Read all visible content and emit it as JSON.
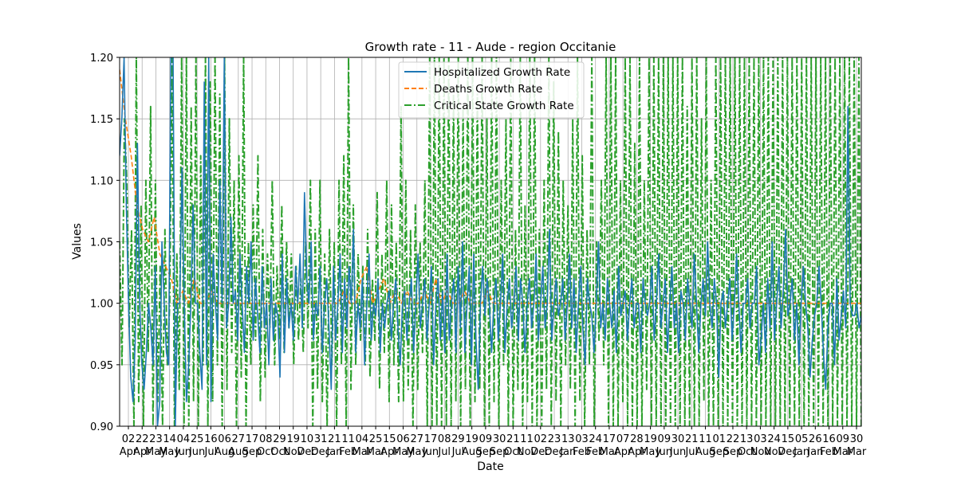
{
  "chart_data": {
    "type": "line",
    "title": "Growth rate - 11 - Aude - region Occitanie",
    "xlabel": "Date",
    "ylabel": "Values",
    "ylim": [
      0.9,
      1.2
    ],
    "yticks": [
      "0.90",
      "0.95",
      "1.00",
      "1.05",
      "1.10",
      "1.15",
      "1.20"
    ],
    "grid": true,
    "legend_position": "upper center",
    "xtick_days": [
      "02",
      "22",
      "23",
      "14",
      "04",
      "25",
      "16",
      "06",
      "27",
      "17",
      "08",
      "29",
      "19",
      "10",
      "31",
      "21",
      "11",
      "04",
      "25",
      "15",
      "06",
      "27",
      "17",
      "08",
      "29",
      "19",
      "09",
      "30",
      "21",
      "11",
      "02",
      "23",
      "13",
      "03",
      "24",
      "17",
      "07",
      "28",
      "19",
      "09",
      "30",
      "21",
      "11",
      "01",
      "22",
      "13",
      "03",
      "24",
      "15",
      "05",
      "26",
      "16",
      "09",
      "30"
    ],
    "xtick_months": [
      "Apr",
      "Apr",
      "May",
      "May",
      "Jun",
      "Jun",
      "Jul",
      "Aug",
      "Aug",
      "Sep",
      "Oct",
      "Oct",
      "Nov",
      "Dec",
      "Dec",
      "Jan",
      "Feb",
      "Mar",
      "Mar",
      "Apr",
      "May",
      "May",
      "Jun",
      "Jul",
      "Jul",
      "Aug",
      "Sep",
      "Sep",
      "Oct",
      "Nov",
      "Dec",
      "Dec",
      "Jan",
      "Feb",
      "Feb",
      "Mar",
      "Apr",
      "Apr",
      "May",
      "Jun",
      "Jun",
      "Jul",
      "Aug",
      "Sep",
      "Sep",
      "Oct",
      "Nov",
      "Nov",
      "Dec",
      "Jan",
      "Jan",
      "Feb",
      "Mar",
      "Mar"
    ],
    "series": [
      {
        "name": "Hospitalized Growth Rate",
        "color": "#1f77b4",
        "style": "solid",
        "x_range": [
          0,
          1
        ],
        "values": [
          1.12,
          1.15,
          1.2,
          1.08,
          1.0,
          0.94,
          0.92,
          0.97,
          1.13,
          1.0,
          0.95,
          0.93,
          0.96,
          1.0,
          0.98,
          0.95,
          1.03,
          0.9,
          0.92,
          1.05,
          1.0,
          0.96,
          0.95,
          1.2,
          1.2,
          0.9,
          1.0,
          1.0,
          1.11,
          1.0,
          0.92,
          0.95,
          1.0,
          1.08,
          1.0,
          1.0,
          0.96,
          0.93,
          1.18,
          0.95,
          1.2,
          0.92,
          1.04,
          1.0,
          0.97,
          1.1,
          1.0,
          1.2,
          0.98,
          1.0,
          1.07,
          1.0,
          1.01,
          0.97,
          1.04,
          1.0,
          0.96,
          1.03,
          1.0,
          1.05,
          0.97,
          1.02,
          0.99,
          0.96,
          1.03,
          0.98,
          1.0,
          0.95,
          1.02,
          0.97,
          1.0,
          0.99,
          0.94,
          1.04,
          0.96,
          1.02,
          0.98,
          1.0,
          0.97,
          1.03,
          1.0,
          1.04,
          0.98,
          1.09,
          1.02,
          1.0,
          1.05,
          0.97,
          1.0,
          0.99,
          1.03,
          0.96,
          1.0,
          1.02,
          0.98,
          0.93,
          1.03,
          0.97,
          1.0,
          1.04,
          0.96,
          1.02,
          0.98,
          1.03,
          1.0,
          1.06,
          0.96,
          1.0,
          0.98,
          1.02,
          0.95,
          1.0,
          1.04,
          0.97,
          1.0,
          0.99,
          1.02,
          0.96,
          1.0,
          0.98,
          1.0,
          1.01,
          0.97,
          1.0,
          1.02,
          0.98,
          0.95,
          1.0,
          1.01,
          0.97,
          1.0,
          1.02,
          0.96,
          1.0,
          1.04,
          0.98,
          1.0,
          1.02,
          0.97,
          1.0,
          1.03,
          0.95,
          1.0,
          1.02,
          0.97,
          1.01,
          0.96,
          1.04,
          0.97,
          1.0,
          1.02,
          0.96,
          1.03,
          0.98,
          1.05,
          0.96,
          1.0,
          1.03,
          0.95,
          1.04,
          0.97,
          0.93,
          1.0,
          1.03,
          0.99,
          1.02,
          1.0,
          0.96,
          1.0,
          1.02,
          0.97,
          1.0,
          1.04,
          0.96,
          1.0,
          1.02,
          0.98,
          1.0,
          1.03,
          0.97,
          1.02,
          1.0,
          0.96,
          1.0,
          1.02,
          0.98,
          1.0,
          1.04,
          0.97,
          1.0,
          1.03,
          0.98,
          1.0,
          1.06,
          0.97,
          1.0,
          1.02,
          0.99,
          1.0,
          1.02,
          0.97,
          1.0,
          1.04,
          0.98,
          1.02,
          0.96,
          1.0,
          1.03,
          0.98,
          0.95,
          1.02,
          1.0,
          0.99,
          0.96,
          1.0,
          1.05,
          0.98,
          1.0,
          0.97,
          1.02,
          1.0,
          0.98,
          1.01,
          0.96,
          1.03,
          0.99,
          1.0,
          1.01,
          0.97,
          1.0,
          1.02,
          0.98,
          1.0,
          1.0,
          0.96,
          1.02,
          1.0,
          0.99,
          1.0,
          1.03,
          0.97,
          1.0,
          1.04,
          0.98,
          1.0,
          1.02,
          0.96,
          1.0,
          1.03,
          0.98,
          1.0,
          0.96,
          1.01,
          1.0,
          0.97,
          1.02,
          1.0,
          0.98,
          1.04,
          1.0,
          0.96,
          1.0,
          1.02,
          0.99,
          1.05,
          1.0,
          0.98,
          1.02,
          1.0,
          0.94,
          1.0,
          1.01,
          0.98,
          1.0,
          1.02,
          0.97,
          1.0,
          1.04,
          1.0,
          0.96,
          1.0,
          1.0,
          1.02,
          0.98,
          1.0,
          1.0,
          1.03,
          0.95,
          0.97,
          1.0,
          0.96,
          1.02,
          0.98,
          1.05,
          0.97,
          1.0,
          1.03,
          0.98,
          1.01,
          1.06,
          0.99,
          1.0,
          1.02,
          0.97,
          1.0,
          0.95,
          1.0,
          1.03,
          1.0,
          0.98,
          0.94,
          0.97,
          0.99,
          1.0,
          1.03,
          1.0,
          0.96,
          0.93,
          0.98,
          1.0,
          1.0,
          0.95,
          1.02,
          0.97,
          0.99,
          1.01,
          0.98,
          1.16,
          1.0,
          0.99,
          0.99,
          1.0,
          0.98,
          0.99
        ]
      },
      {
        "name": "Deaths Growth Rate",
        "color": "#ff7f0e",
        "style": "dashed",
        "x_range": [
          0,
          1
        ],
        "values": [
          1.19,
          1.15,
          1.12,
          1.08,
          1.06,
          1.05,
          1.07,
          1.04,
          1.03,
          1.02,
          1.0,
          1.01,
          1.0,
          1.02,
          1.0,
          1.0,
          1.01,
          1.0,
          1.0,
          1.0,
          1.0,
          1.0,
          1.0,
          1.0,
          1.0,
          1.0,
          1.0,
          1.0,
          1.0,
          1.0,
          1.0,
          1.0,
          1.0,
          1.0,
          1.0,
          1.0,
          1.0,
          1.0,
          1.0,
          1.01,
          1.0,
          1.0,
          1.02,
          1.03,
          1.0,
          1.01,
          1.02,
          1.0,
          1.01,
          1.0,
          1.01,
          1.0,
          1.0,
          1.01,
          1.0,
          1.02,
          1.0,
          1.01,
          1.0,
          1.0,
          1.01,
          1.0,
          1.0,
          1.0,
          1.01,
          1.0,
          1.0,
          1.0,
          1.0,
          1.0,
          1.0,
          1.0,
          1.0,
          1.0,
          1.0,
          1.0,
          1.0,
          1.0,
          1.0,
          1.0,
          1.0,
          1.0,
          1.0,
          1.0,
          1.0,
          1.0,
          1.0,
          1.0,
          1.0,
          1.0,
          1.0,
          1.0,
          1.0,
          1.0,
          1.0,
          1.0,
          1.0,
          1.0,
          1.0,
          1.0,
          1.0,
          1.0,
          1.0,
          1.0,
          1.0,
          1.0,
          1.0,
          1.0,
          1.0,
          1.0,
          1.0,
          1.0,
          1.0,
          1.0,
          1.0,
          1.0,
          1.0,
          1.0,
          1.0,
          1.0,
          1.0,
          1.0,
          1.0,
          1.0,
          1.0,
          1.0,
          1.0,
          1.0,
          1.0,
          1.0
        ]
      },
      {
        "name": "Critical State Growth Rate",
        "color": "#2ca02c",
        "style": "dashdot",
        "x_range": [
          0,
          1
        ],
        "values": [
          1.05,
          0.95,
          1.15,
          1.1,
          0.98,
          1.06,
          0.9,
          1.2,
          0.92,
          1.08,
          0.9,
          1.1,
          0.96,
          1.16,
          0.9,
          1.1,
          0.92,
          1.03,
          0.9,
          1.06,
          0.95,
          1.0,
          1.2,
          0.9,
          1.04,
          0.93,
          1.2,
          0.9,
          1.2,
          0.9,
          1.16,
          0.92,
          1.2,
          0.9,
          1.12,
          0.95,
          1.2,
          0.9,
          1.18,
          0.92,
          1.2,
          0.95,
          1.17,
          0.9,
          1.2,
          0.93,
          1.15,
          0.96,
          1.1,
          0.9,
          1.12,
          0.94,
          1.2,
          0.9,
          1.05,
          0.95,
          1.08,
          0.97,
          1.12,
          0.92,
          1.06,
          0.94,
          1.04,
          0.98,
          1.1,
          0.95,
          1.03,
          0.97,
          1.08,
          0.96,
          1.05,
          0.98,
          1.04,
          0.95,
          1.03,
          0.97,
          1.02,
          0.96,
          1.05,
          0.98,
          1.1,
          0.9,
          1.06,
          0.93,
          1.1,
          0.92,
          1.04,
          0.9,
          1.06,
          0.95,
          1.05,
          0.9,
          1.1,
          0.95,
          1.12,
          0.9,
          1.2,
          0.93,
          1.08,
          0.95,
          1.04,
          0.97,
          1.03,
          0.95,
          1.06,
          0.94,
          1.02,
          0.97,
          1.09,
          0.93,
          1.04,
          0.96,
          1.1,
          0.92,
          1.08,
          0.95,
          1.05,
          0.92,
          1.16,
          0.92,
          1.1,
          0.93,
          1.06,
          0.9,
          1.08,
          0.93,
          1.05,
          0.96,
          1.1,
          0.9,
          1.2,
          0.9,
          1.2,
          0.9,
          1.2,
          0.9,
          1.2,
          0.9,
          1.2,
          0.9,
          1.17,
          0.92,
          1.2,
          0.9,
          1.16,
          0.93,
          1.2,
          0.9,
          1.2,
          0.92,
          1.17,
          0.93,
          1.2,
          0.9,
          1.15,
          0.9,
          1.2,
          0.92,
          1.2,
          0.9,
          1.1,
          0.95,
          1.15,
          0.9,
          1.2,
          0.9,
          1.06,
          0.93,
          1.2,
          0.9,
          1.08,
          0.92,
          1.2,
          0.9,
          1.2,
          0.9,
          1.06,
          0.9,
          1.1,
          0.93,
          1.2,
          0.9,
          1.18,
          0.92,
          1.14,
          0.9,
          1.1,
          0.95,
          1.08,
          0.93,
          1.15,
          0.9,
          1.2,
          0.92,
          1.12,
          0.9,
          1.06,
          0.95,
          1.2,
          0.9,
          1.05,
          0.97,
          1.1,
          0.95,
          1.2,
          0.9,
          1.2,
          0.9,
          1.2,
          0.9,
          1.1,
          0.92,
          1.2,
          0.9,
          1.2,
          0.9,
          1.13,
          0.9,
          1.2,
          0.9,
          1.1,
          0.93,
          1.2,
          0.9,
          1.2,
          0.9,
          1.2,
          0.9,
          1.2,
          0.9,
          1.2,
          0.9,
          1.2,
          0.9,
          1.2,
          0.9,
          1.2,
          0.9,
          1.16,
          0.9,
          1.2,
          0.9,
          1.2,
          0.9,
          1.15,
          0.92,
          1.2,
          0.9,
          1.1,
          0.9,
          1.2,
          0.9,
          1.2,
          0.9,
          1.2,
          0.9,
          1.2,
          0.9,
          1.2,
          0.9,
          1.2,
          0.9,
          1.2,
          0.9,
          1.2,
          0.9,
          1.2,
          0.9,
          1.2,
          0.9,
          1.2,
          0.9,
          1.2,
          0.9,
          1.2,
          0.9,
          1.2,
          0.9,
          1.2,
          0.9,
          1.2,
          0.9,
          1.2,
          0.9,
          1.2,
          0.9,
          1.2,
          0.9,
          1.2,
          0.9,
          1.2,
          0.9,
          1.2,
          0.9,
          1.2,
          0.9,
          1.2,
          0.9,
          1.2,
          0.9,
          1.2,
          0.9,
          1.2,
          0.9,
          1.2,
          0.9,
          1.2,
          0.9,
          1.2,
          0.9,
          1.2,
          0.9
        ]
      }
    ]
  }
}
